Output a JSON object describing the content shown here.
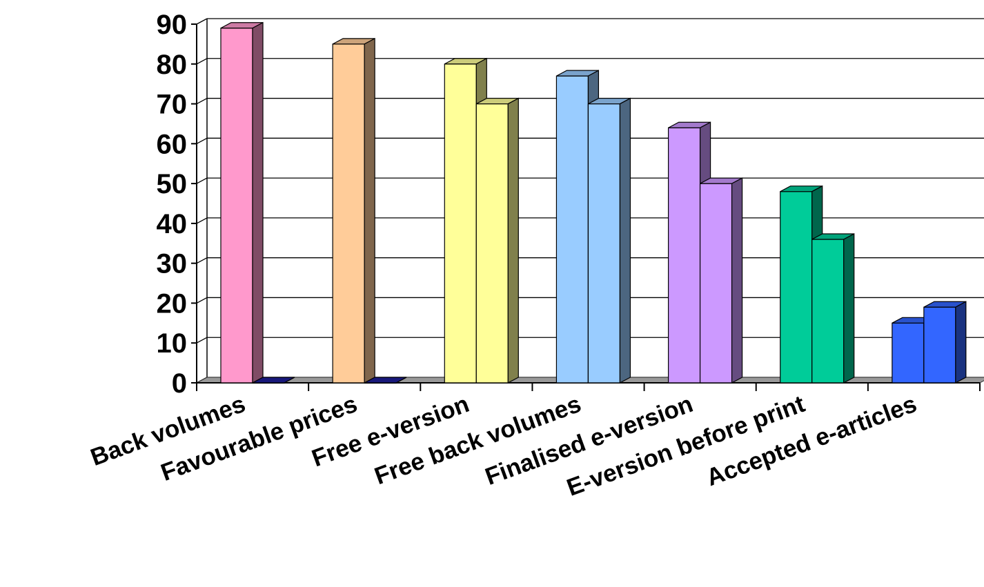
{
  "chart_data": {
    "type": "bar",
    "style": "3d-clustered-column",
    "title": "",
    "xlabel": "",
    "ylabel": "",
    "ylim": [
      0,
      90
    ],
    "yticks": [
      0,
      10,
      20,
      30,
      40,
      50,
      60,
      70,
      80,
      90
    ],
    "grid": true,
    "legend": "none",
    "categories": [
      "Back volumes",
      "Favourable prices",
      "Free e-version",
      "Free back volumes",
      "Finalised e-version",
      "E-version before print",
      "Accepted e-articles"
    ],
    "series": [
      {
        "values": [
          89,
          85,
          80,
          77,
          64,
          48,
          15
        ]
      },
      {
        "values": [
          0,
          0,
          70,
          70,
          50,
          36,
          19
        ]
      }
    ],
    "colors": {
      "front": [
        "#FF99CC",
        "#FFCC99",
        "#FFFF99",
        "#99CCFF",
        "#CC99FF",
        "#00CC99",
        "#3366FF"
      ],
      "side": [
        "#804C66",
        "#80664C",
        "#80804C",
        "#4C6680",
        "#664C80",
        "#00664C",
        "#1A3380"
      ],
      "top": [
        "#CC7AA3",
        "#CCA37A",
        "#CCCC7A",
        "#7AA3CC",
        "#A37ACC",
        "#00A37A",
        "#2952CC"
      ],
      "zero_bar": "#1F1F99",
      "floor": "#999999"
    }
  }
}
